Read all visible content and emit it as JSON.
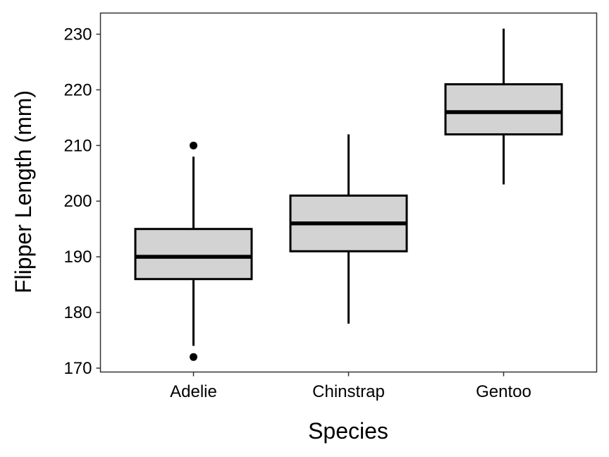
{
  "chart_data": {
    "type": "boxplot",
    "title": "",
    "xlabel": "Species",
    "ylabel": "Flipper Length (mm)",
    "ylim": [
      169.3,
      233.8
    ],
    "yticks": [
      170,
      180,
      190,
      200,
      210,
      220,
      230
    ],
    "categories": [
      "Adelie",
      "Chinstrap",
      "Gentoo"
    ],
    "boxes": [
      {
        "category": "Adelie",
        "whisker_low": 174,
        "q1": 186,
        "median": 190,
        "q3": 195,
        "whisker_high": 208,
        "outliers": [
          172,
          210
        ]
      },
      {
        "category": "Chinstrap",
        "whisker_low": 178,
        "q1": 191,
        "median": 196,
        "q3": 201,
        "whisker_high": 212,
        "outliers": []
      },
      {
        "category": "Gentoo",
        "whisker_low": 203,
        "q1": 212,
        "median": 216,
        "q3": 221,
        "whisker_high": 231,
        "outliers": []
      }
    ],
    "box_fill": "#d3d3d3",
    "line_color": "#000000",
    "grid": false,
    "legend": "none"
  }
}
